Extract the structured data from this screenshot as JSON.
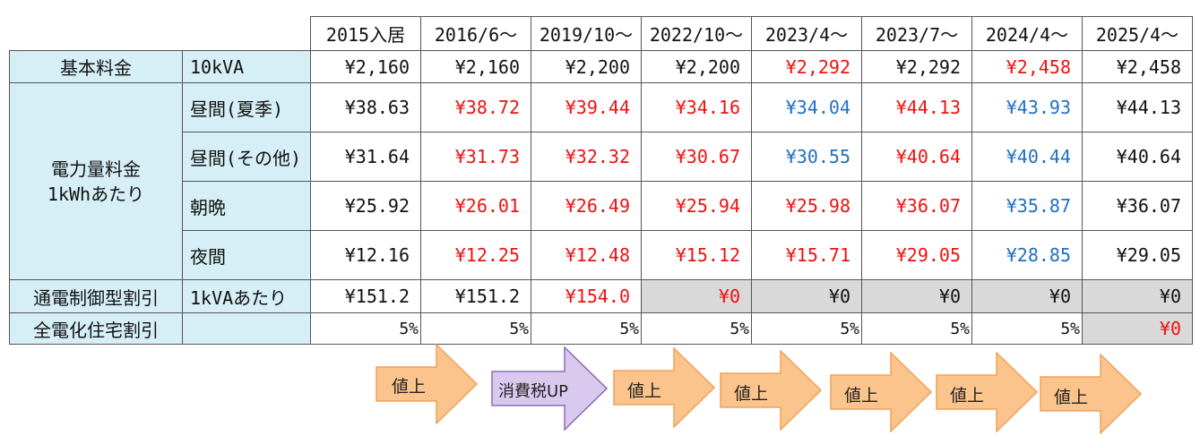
{
  "table": {
    "headers": [
      "2015入居",
      "2016/6～",
      "2019/10～",
      "2022/10～",
      "2023/4～",
      "2023/7～",
      "2024/4～",
      "2025/4～"
    ],
    "rows": {
      "basic": {
        "category": "基本料金",
        "sub": "10kVA",
        "values": [
          "¥2,160",
          "¥2,160",
          "¥2,200",
          "¥2,200",
          "¥2,292",
          "¥2,292",
          "¥2,458",
          "¥2,458"
        ]
      },
      "energy": {
        "category_line1": "電力量料金",
        "category_line2": "1kWhあたり",
        "items": [
          {
            "sub": "昼間(夏季)",
            "values": [
              "¥38.63",
              "¥38.72",
              "¥39.44",
              "¥34.16",
              "¥34.04",
              "¥44.13",
              "¥43.93",
              "¥44.13"
            ]
          },
          {
            "sub": "昼間(その他)",
            "values": [
              "¥31.64",
              "¥31.73",
              "¥32.32",
              "¥30.67",
              "¥30.55",
              "¥40.64",
              "¥40.44",
              "¥40.64"
            ]
          },
          {
            "sub": "朝晩",
            "values": [
              "¥25.92",
              "¥26.01",
              "¥26.49",
              "¥25.94",
              "¥25.98",
              "¥36.07",
              "¥35.87",
              "¥36.07"
            ]
          },
          {
            "sub": "夜間",
            "values": [
              "¥12.16",
              "¥12.25",
              "¥12.48",
              "¥15.12",
              "¥15.71",
              "¥29.05",
              "¥28.85",
              "¥29.05"
            ]
          }
        ]
      },
      "control": {
        "category": "通電制御型割引",
        "sub": "1kVAあたり",
        "values": [
          "¥151.2",
          "¥151.2",
          "¥154.0",
          "¥0",
          "¥0",
          "¥0",
          "¥0",
          "¥0"
        ]
      },
      "allelec": {
        "category": "全電化住宅割引",
        "sub": "",
        "values": [
          "5%",
          "5%",
          "5%",
          "5%",
          "5%",
          "5%",
          "5%",
          "¥0"
        ]
      }
    }
  },
  "arrows": [
    "値上",
    "消費税UP",
    "値上",
    "値上",
    "値上",
    "値上",
    "値上"
  ],
  "colors": {
    "increase": "#ee1111",
    "decrease": "#1f70c1",
    "header_fill": "#d6eef5",
    "zero_fill": "#d9d9d9",
    "arrow_orange": "#fbc48c",
    "arrow_purple": "#d9c9ee"
  }
}
